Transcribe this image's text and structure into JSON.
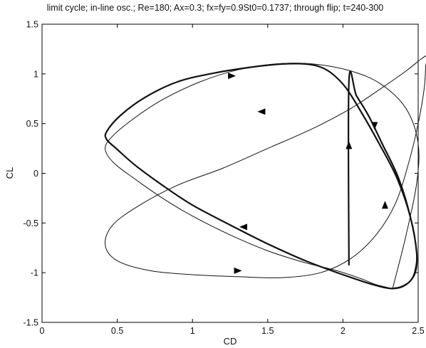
{
  "chart_data": {
    "type": "line",
    "title": "limit cycle; in-line osc.; Re=180; Ax=0.3; fx=fy=0.9St0=0.1737; through flip; t=240-300",
    "xlabel": "CD",
    "ylabel": "CL",
    "xlim": [
      0,
      2.5
    ],
    "ylim": [
      -1.5,
      1.5
    ],
    "xticks": [
      0,
      0.5,
      1,
      1.5,
      2,
      2.5
    ],
    "yticks": [
      -1.5,
      -1,
      -0.5,
      0,
      0.5,
      1,
      1.5
    ],
    "xtick_labels": [
      "0",
      "0.5",
      "1",
      "1.5",
      "2",
      "2.5"
    ],
    "ytick_labels": [
      "-1.5",
      "-1",
      "-0.5",
      "0",
      "0.5",
      "1",
      "1.5"
    ],
    "grid": false,
    "series": [
      {
        "style": "thick",
        "x": [
          2.04,
          2.04,
          2.09,
          2.17,
          2.26,
          2.37,
          2.45,
          2.49,
          2.48,
          2.42,
          2.33,
          2.2,
          2.0,
          1.75,
          1.5,
          1.25,
          1.0,
          0.8,
          0.62,
          0.5,
          0.43,
          0.43,
          0.52,
          0.68,
          0.9,
          1.15,
          1.4,
          1.6,
          1.75,
          1.85,
          1.93,
          2.02,
          2.12,
          2.24,
          2.36,
          2.45,
          2.49,
          2.48,
          2.45,
          2.39,
          2.33
        ],
        "y": [
          -0.92,
          0.92,
          0.78,
          0.58,
          0.3,
          -0.05,
          -0.45,
          -0.8,
          -1.0,
          -1.12,
          -1.16,
          -1.12,
          -1.02,
          -0.88,
          -0.71,
          -0.52,
          -0.32,
          -0.12,
          0.08,
          0.24,
          0.34,
          0.42,
          0.58,
          0.76,
          0.92,
          1.01,
          1.07,
          1.1,
          1.1,
          1.07,
          1.0,
          0.86,
          0.62,
          0.3,
          -0.05,
          -0.45,
          -0.8,
          -0.98,
          -1.08,
          -1.14,
          -1.16
        ]
      },
      {
        "style": "thin",
        "x": [
          2.33,
          2.22,
          2.12,
          1.96,
          1.75,
          1.5,
          1.25,
          1.0,
          0.8,
          0.62,
          0.48,
          0.42,
          0.46,
          0.6,
          0.8,
          1.05,
          1.3,
          1.55,
          1.8,
          2.05,
          2.25,
          2.42,
          2.5,
          2.49,
          2.42,
          2.33
        ],
        "y": [
          -1.16,
          -1.12,
          -1.06,
          -0.98,
          -0.9,
          -0.78,
          -0.62,
          -0.43,
          -0.25,
          -0.06,
          0.1,
          0.24,
          0.36,
          0.54,
          0.74,
          0.92,
          1.04,
          1.1,
          1.1,
          1.03,
          0.9,
          0.65,
          0.3,
          -0.1,
          -0.62,
          -1.16
        ]
      },
      {
        "style": "thin",
        "x": [
          2.55,
          2.56,
          2.52,
          2.42,
          2.25,
          2.05,
          1.8,
          1.5,
          1.2,
          0.9,
          0.65,
          0.47,
          0.42,
          0.5,
          0.72,
          1.0,
          1.3,
          1.6,
          1.85,
          2.05,
          2.22,
          2.35,
          2.44,
          2.5,
          2.54,
          2.55
        ],
        "y": [
          1.08,
          1.18,
          1.15,
          1.03,
          0.85,
          0.65,
          0.45,
          0.25,
          0.05,
          -0.12,
          -0.32,
          -0.52,
          -0.72,
          -0.88,
          -0.98,
          -1.02,
          -1.04,
          -1.05,
          -1.0,
          -0.86,
          -0.62,
          -0.3,
          0.12,
          0.5,
          0.85,
          1.08
        ]
      }
    ],
    "arrows": [
      {
        "x": 1.26,
        "y": 0.98,
        "dir": "right"
      },
      {
        "x": 2.04,
        "y": 0.28,
        "dir": "up"
      },
      {
        "x": 2.21,
        "y": 0.48,
        "dir": "down"
      },
      {
        "x": 1.34,
        "y": -0.54,
        "dir": "left"
      },
      {
        "x": 1.46,
        "y": 0.62,
        "dir": "left"
      },
      {
        "x": 2.28,
        "y": -0.32,
        "dir": "up"
      },
      {
        "x": 1.3,
        "y": -0.98,
        "dir": "right"
      }
    ]
  }
}
